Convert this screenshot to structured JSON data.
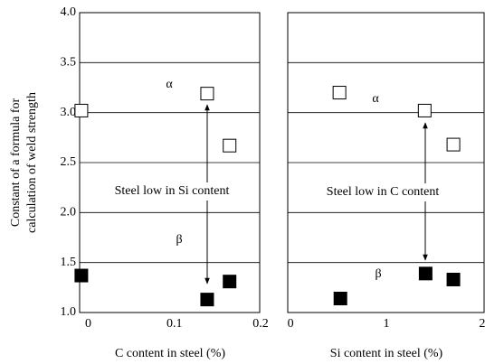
{
  "chart_data": [
    {
      "type": "scatter",
      "y_label": [
        "Constant of a formula for",
        "calculation of weld strength"
      ],
      "x_label": "C content in steel (%)",
      "xlim": [
        -0.01,
        0.2
      ],
      "xticks": [
        0,
        0.1,
        0.2
      ],
      "ylim": [
        1.0,
        4.0
      ],
      "yticks": [
        {
          "value": 1,
          "label": "1.0"
        },
        {
          "value": 1.5,
          "label": "1.5"
        },
        {
          "value": 2,
          "label": "2.0"
        },
        {
          "value": 2.5,
          "label": "2.5"
        },
        {
          "value": 3,
          "label": "3.0"
        },
        {
          "value": 3.5,
          "label": "3.5"
        },
        {
          "value": 4,
          "label": "4.0"
        }
      ],
      "grid": true,
      "series": [
        {
          "marker": "open-square",
          "color": "#000000",
          "x": [
            -0.008,
            0.138,
            0.164
          ],
          "values": [
            3.02,
            3.19,
            2.67
          ]
        },
        {
          "marker": "filled-square",
          "color": "#000000",
          "x": [
            -0.008,
            0.138,
            0.164
          ],
          "values": [
            1.37,
            1.13,
            1.31
          ]
        }
      ],
      "annotations": [
        "α",
        "β",
        "Steel low in Si content"
      ]
    },
    {
      "type": "scatter",
      "x_label": "Si content in steel (%)",
      "xlim": [
        -0.03,
        2.03
      ],
      "xticks": [
        0,
        1,
        2
      ],
      "ylim": [
        1.0,
        4.0
      ],
      "yticks": [
        1,
        1.5,
        2,
        2.5,
        3,
        3.5,
        4
      ],
      "grid": true,
      "series": [
        {
          "marker": "open-square",
          "color": "#000000",
          "x": [
            0.51,
            1.4,
            1.7
          ],
          "values": [
            3.2,
            3.02,
            2.68
          ]
        },
        {
          "marker": "filled-square",
          "color": "#000000",
          "x": [
            0.52,
            1.41,
            1.7
          ],
          "values": [
            1.14,
            1.39,
            1.33
          ]
        }
      ],
      "annotations": [
        "α",
        "β",
        "Steel low in C content"
      ]
    }
  ]
}
